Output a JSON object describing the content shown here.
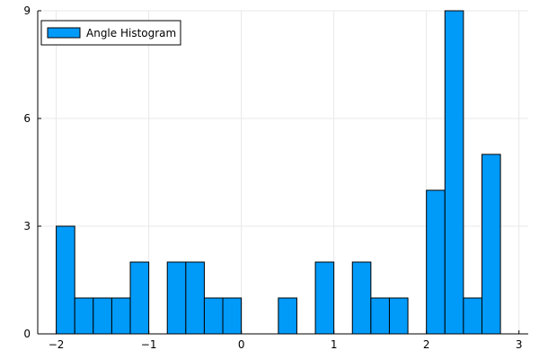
{
  "chart_data": {
    "type": "bar",
    "title": "",
    "xlabel": "",
    "ylabel": "",
    "xlim": [
      -2.2,
      3.1
    ],
    "ylim": [
      0,
      9
    ],
    "grid": true,
    "legend_position": "top-left",
    "bar_color": "#009af9",
    "edge_color": "#000000",
    "xticks": [
      -2,
      -1,
      0,
      1,
      2,
      3
    ],
    "xtick_labels": [
      "−2",
      "−1",
      "0",
      "1",
      "2",
      "3"
    ],
    "yticks": [
      0,
      3,
      6,
      9
    ],
    "ytick_labels": [
      "0",
      "3",
      "6",
      "9"
    ],
    "series": [
      {
        "name": "Angle Histogram",
        "bin_edges": [
          -2.0,
          -1.8,
          -1.6,
          -1.4,
          -1.2,
          -1.0,
          -0.8,
          -0.6,
          -0.4,
          -0.2,
          0.0,
          0.2,
          0.4,
          0.6,
          0.8,
          1.0,
          1.2,
          1.4,
          1.6,
          1.8,
          2.0,
          2.2,
          2.4,
          2.6,
          2.8
        ],
        "counts": [
          3,
          1,
          1,
          1,
          2,
          0,
          2,
          2,
          1,
          1,
          0,
          0,
          1,
          0,
          2,
          0,
          2,
          1,
          1,
          0,
          4,
          9,
          1,
          5
        ]
      }
    ]
  }
}
